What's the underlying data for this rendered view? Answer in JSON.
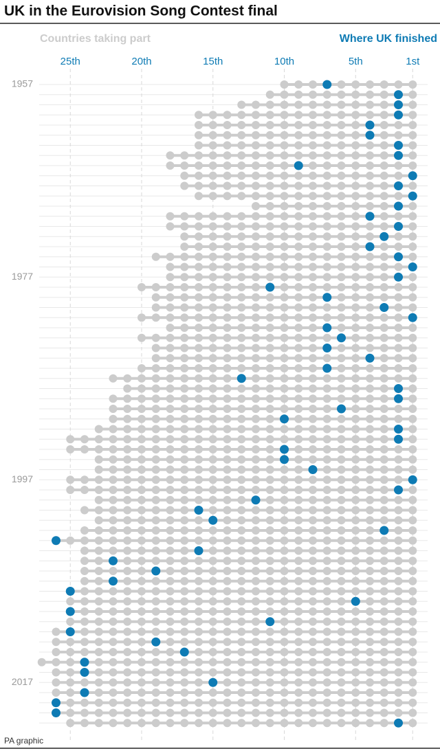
{
  "chart_data": {
    "type": "dot-strip",
    "title": "UK in the Eurovision Song Contest final",
    "source": "PA graphic",
    "categories": [
      "1957",
      null,
      null,
      null,
      null,
      null,
      null,
      null,
      null,
      null,
      null,
      null,
      null,
      null,
      null,
      null,
      null,
      null,
      null,
      "1977",
      null,
      null,
      null,
      null,
      null,
      null,
      null,
      null,
      null,
      null,
      null,
      null,
      null,
      null,
      null,
      null,
      null,
      null,
      null,
      "1997",
      null,
      null,
      null,
      null,
      null,
      null,
      null,
      null,
      null,
      null,
      null,
      null,
      null,
      null,
      null,
      null,
      null,
      null,
      null,
      "2017",
      null,
      null,
      null,
      null
    ],
    "series": [
      {
        "name": "Countries taking part",
        "color": "#cccccc",
        "values": [
          10,
          11,
          13,
          16,
          16,
          16,
          16,
          18,
          18,
          17,
          17,
          16,
          12,
          18,
          18,
          17,
          17,
          19,
          18,
          18,
          20,
          19,
          19,
          20,
          18,
          20,
          19,
          19,
          20,
          22,
          21,
          22,
          22,
          22,
          23,
          25,
          25,
          23,
          23,
          25,
          25,
          23,
          24,
          23,
          24,
          26,
          24,
          24,
          24,
          24,
          25,
          25,
          25,
          25,
          26,
          26,
          26,
          27,
          26,
          26,
          26,
          26,
          26,
          25
        ]
      },
      {
        "name": "Where UK finished",
        "color": "#0e7bb4",
        "values": [
          7,
          2,
          2,
          2,
          4,
          4,
          2,
          2,
          9,
          1,
          2,
          1,
          2,
          4,
          2,
          3,
          4,
          2,
          1,
          2,
          11,
          7,
          3,
          1,
          7,
          6,
          7,
          4,
          7,
          13,
          2,
          2,
          6,
          10,
          2,
          2,
          10,
          10,
          8,
          1,
          2,
          12,
          16,
          15,
          3,
          26,
          16,
          22,
          19,
          22,
          25,
          5,
          25,
          11,
          25,
          19,
          17,
          24,
          24,
          15,
          24,
          26,
          26,
          2
        ]
      }
    ],
    "xlim": [
      28,
      0
    ],
    "xticks": [
      {
        "value": 25,
        "label": "25th"
      },
      {
        "value": 20,
        "label": "20th"
      },
      {
        "value": 15,
        "label": "15th"
      },
      {
        "value": 10,
        "label": "10th"
      },
      {
        "value": 5,
        "label": "5th"
      },
      {
        "value": 1,
        "label": "1st"
      }
    ],
    "grid": true
  }
}
